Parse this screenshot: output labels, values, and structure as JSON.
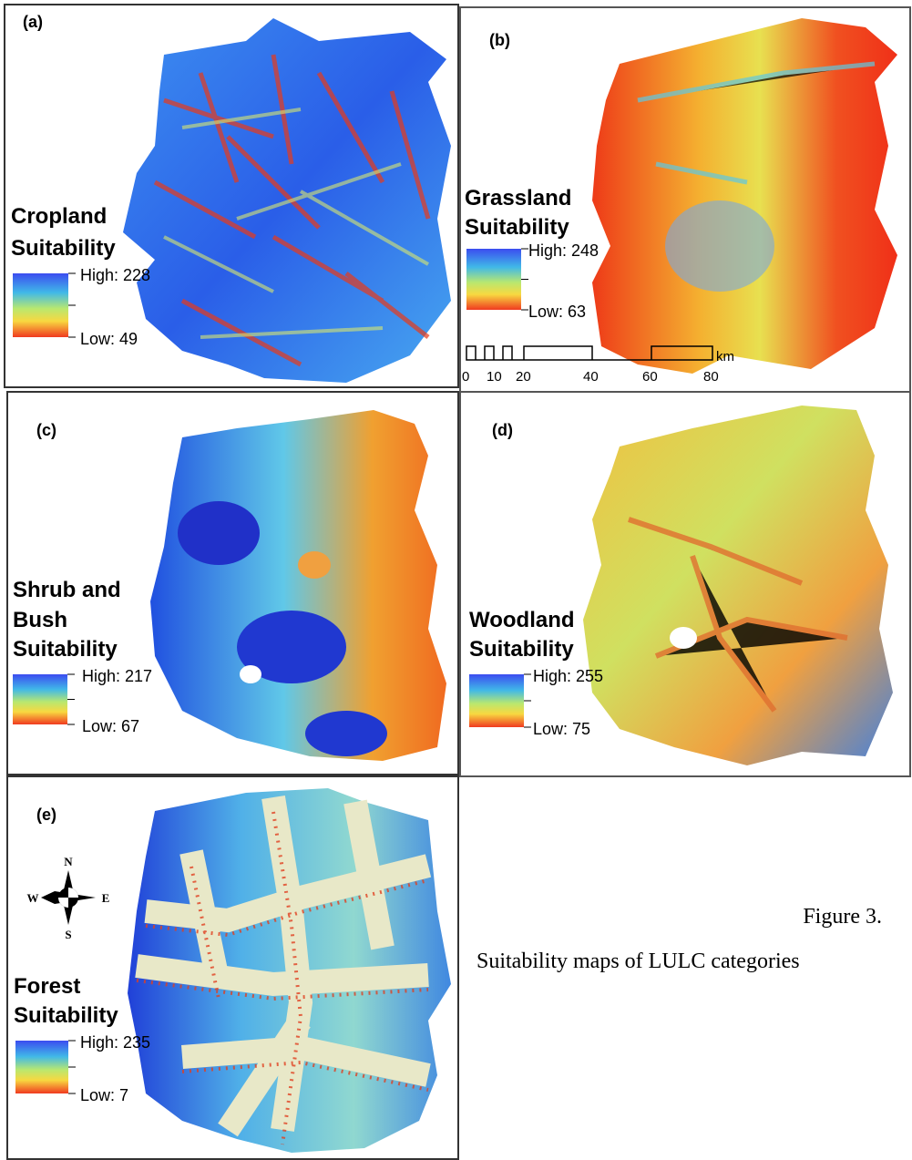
{
  "panels": [
    {
      "label": "(a)",
      "title": [
        "Cropland",
        "Suitability"
      ],
      "legend": {
        "high": "High: 228",
        "low": "Low: 49"
      }
    },
    {
      "label": "(b)",
      "title": [
        "Grassland",
        "Suitability"
      ],
      "legend": {
        "high": "High: 248",
        "low": "Low: 63"
      },
      "scale_bar": {
        "labels": [
          "0",
          "10",
          "20",
          "40",
          "60",
          "80"
        ],
        "unit": "km"
      }
    },
    {
      "label": "(c)",
      "title": [
        "Shrub and",
        "Bush",
        "Suitability"
      ],
      "legend": {
        "high": "High: 217",
        "low": "Low: 67"
      }
    },
    {
      "label": "(d)",
      "title": [
        "Woodland",
        "Suitability"
      ],
      "legend": {
        "high": "High: 255",
        "low": "Low: 75"
      }
    },
    {
      "label": "(e)",
      "title": [
        "Forest",
        "Suitability"
      ],
      "legend": {
        "high": "High: 235",
        "low": "Low: 7"
      },
      "compass": {
        "n": "N",
        "s": "S",
        "e": "E",
        "w": "W"
      }
    }
  ],
  "caption": {
    "number": "Figure 3.",
    "text": "Suitability maps of LULC categories"
  }
}
